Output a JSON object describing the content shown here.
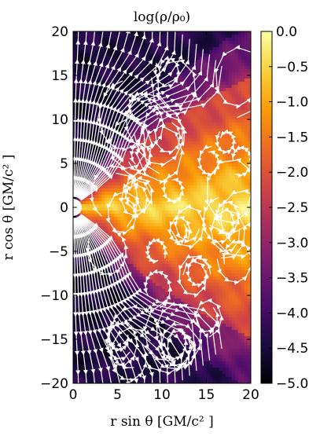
{
  "chart_data": {
    "type": "heatmap",
    "title": "log(ρ/ρ₀)",
    "xlabel": "r sin θ [GM/c² ]",
    "ylabel": "r cos θ [GM/c² ]",
    "xlim": [
      0,
      20
    ],
    "ylim": [
      -20,
      20
    ],
    "x_ticks": [
      0,
      5,
      10,
      15,
      20
    ],
    "x_tick_labels": [
      "0",
      "5",
      "10",
      "15",
      "20"
    ],
    "y_ticks": [
      20,
      15,
      10,
      5,
      0,
      -5,
      -10,
      -15,
      -20
    ],
    "y_tick_labels": [
      "20",
      "15",
      "10",
      "5",
      "0",
      "−5",
      "−10",
      "−15",
      "−20"
    ],
    "colorbar": {
      "colormap": "inferno",
      "range": [
        -5.0,
        0.0
      ],
      "ticks": [
        0.0,
        -0.5,
        -1.0,
        -1.5,
        -2.0,
        -2.5,
        -3.0,
        -3.5,
        -4.0,
        -4.5,
        -5.0
      ],
      "tick_labels": [
        "0.0",
        "−0.5",
        "−1.0",
        "−1.5",
        "−2.0",
        "−2.5",
        "−3.0",
        "−3.5",
        "−4.0",
        "−4.5",
        "−5.0"
      ]
    },
    "overlay": "magnetic field streamlines (white, with arrows)",
    "grid": false,
    "colors": {
      "stops": [
        "#000004",
        "#1b0c41",
        "#4a0c6b",
        "#781c6d",
        "#a52c60",
        "#cf4446",
        "#ed6925",
        "#fb9b06",
        "#f7d13d",
        "#fcffa4"
      ],
      "streamline": "#ffffff"
    }
  }
}
